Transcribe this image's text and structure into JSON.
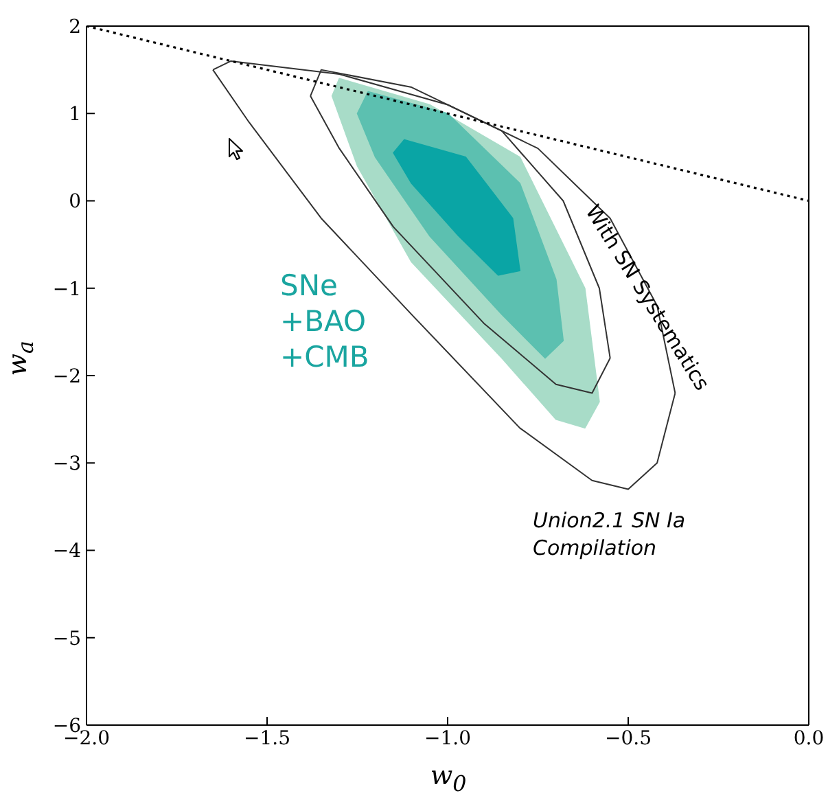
{
  "chart_data": {
    "type": "line",
    "xlabel": "w$_{0}$",
    "ylabel": "w$_{a}$",
    "xlim": [
      -2,
      0
    ],
    "xticks": [
      {
        "value": -2,
        "label": "−2.0"
      },
      {
        "value": -1.5,
        "label": "−1.5"
      },
      {
        "value": -1,
        "label": "−1.0"
      },
      {
        "value": -0.5,
        "label": "−0.5"
      },
      {
        "value": 0,
        "label": "0.0"
      }
    ],
    "ylim": [
      -6,
      2
    ],
    "yticks": [
      {
        "value": -6,
        "label": "−6"
      },
      {
        "value": -5,
        "label": "−5"
      },
      {
        "value": -4,
        "label": "−4"
      },
      {
        "value": -3,
        "label": "−3"
      },
      {
        "value": -2,
        "label": "−2"
      },
      {
        "value": -1,
        "label": "−1"
      },
      0,
      1,
      2
    ],
    "annotations": [
      "SNe",
      "+BAO",
      "+CMB",
      "With SN Systematics",
      "Union2.1 SN Ia",
      "Compilation"
    ],
    "series": [
      {
        "color": "#333333",
        "x": [
          -1.65,
          -1.6,
          -1.3,
          -1.0,
          -0.75,
          -0.55,
          -0.42,
          -0.37
        ],
        "values": [
          1.5,
          1.6,
          1.45,
          1.1,
          0.6,
          -0.2,
          -1.2,
          -2.2
        ]
      },
      {
        "color": "#333333",
        "x": [
          -1.65,
          -1.55,
          -1.35,
          -1.1,
          -0.8,
          -0.6,
          -0.5,
          -0.42,
          -0.37
        ],
        "values": [
          1.5,
          0.9,
          -0.2,
          -1.3,
          -2.6,
          -3.2,
          -3.3,
          -3.0,
          -2.2
        ]
      },
      {
        "color": "#333333",
        "x": [
          -1.38,
          -1.35,
          -1.1,
          -0.85,
          -0.68,
          -0.58,
          -0.55
        ],
        "values": [
          1.2,
          1.5,
          1.3,
          0.8,
          0.0,
          -1.0,
          -1.8
        ]
      },
      {
        "color": "#333333",
        "x": [
          -1.38,
          -1.3,
          -1.15,
          -0.9,
          -0.7,
          -0.6,
          -0.55
        ],
        "values": [
          1.2,
          0.6,
          -0.3,
          -1.4,
          -2.1,
          -2.2,
          -1.8
        ]
      },
      {
        "type": "area",
        "color": "#a8dcc8",
        "x": [
          -1.3,
          -1.05,
          -0.8,
          -0.62,
          -0.58,
          -0.62,
          -0.7,
          -0.85,
          -1.1,
          -1.25,
          -1.32,
          -1.3
        ],
        "values": [
          1.4,
          1.1,
          0.5,
          -1.0,
          -2.3,
          -2.6,
          -2.5,
          -1.8,
          -0.7,
          0.4,
          1.2,
          1.4
        ]
      },
      {
        "type": "area",
        "color": "#5cc0b0",
        "x": [
          -1.22,
          -1.0,
          -0.8,
          -0.7,
          -0.68,
          -0.73,
          -0.85,
          -1.05,
          -1.2,
          -1.25,
          -1.22
        ],
        "values": [
          1.25,
          1.0,
          0.2,
          -0.9,
          -1.6,
          -1.8,
          -1.3,
          -0.4,
          0.5,
          1.0,
          1.25
        ]
      },
      {
        "type": "area",
        "color": "#0aa5a5",
        "x": [
          -1.12,
          -0.95,
          -0.82,
          -0.8,
          -0.86,
          -0.97,
          -1.1,
          -1.15,
          -1.12
        ],
        "values": [
          0.7,
          0.5,
          -0.2,
          -0.8,
          -0.85,
          -0.4,
          0.2,
          0.55,
          0.7
        ]
      },
      {
        "color": "#000000",
        "line_style": "dotted",
        "x": [
          -2,
          0
        ],
        "values": [
          2,
          0
        ]
      }
    ]
  }
}
